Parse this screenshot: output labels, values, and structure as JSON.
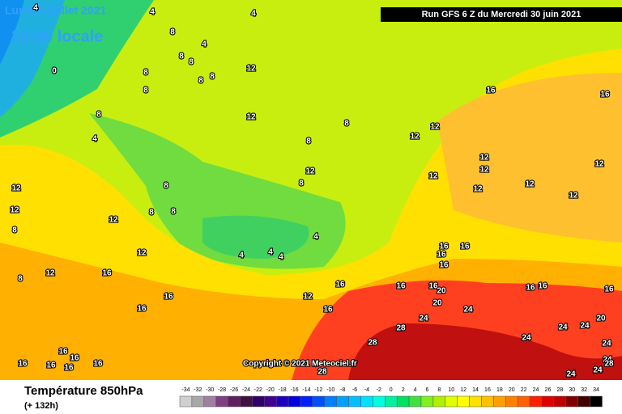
{
  "header": {
    "date": "Lundi 5 juillet 2021",
    "time": "20:00 locale",
    "run": "Run GFS 6 Z du Mercredi 30 juin 2021"
  },
  "copyright": "Copyright © 2021 Meteociel.fr",
  "legend": {
    "title": "Température 850hPa",
    "lead": "(+ 132h)",
    "scale": [
      -34,
      -32,
      -30,
      -28,
      -26,
      -24,
      -22,
      -20,
      -18,
      -16,
      -14,
      -12,
      -10,
      -8,
      -6,
      -4,
      -2,
      0,
      2,
      4,
      6,
      8,
      10,
      12,
      14,
      16,
      18,
      20,
      22,
      24,
      26,
      28,
      30,
      32,
      34
    ]
  },
  "contour_labels": [
    4,
    4,
    4,
    8,
    4,
    8,
    8,
    8,
    12,
    8,
    8,
    0,
    8,
    8,
    4,
    12,
    8,
    8,
    16,
    16,
    12,
    12,
    12,
    12,
    12,
    12,
    12,
    8,
    8,
    12,
    12,
    12,
    12,
    12,
    8,
    12,
    8,
    8,
    4,
    4,
    4,
    4,
    12,
    12,
    16,
    8,
    16,
    16,
    16,
    16,
    16,
    16,
    16,
    20,
    12,
    16,
    16,
    16,
    20,
    16,
    16,
    16,
    24,
    24,
    28,
    28,
    24,
    24,
    20,
    24,
    24,
    24,
    28,
    24,
    24,
    28,
    16,
    16,
    16,
    16,
    16,
    16
  ]
}
